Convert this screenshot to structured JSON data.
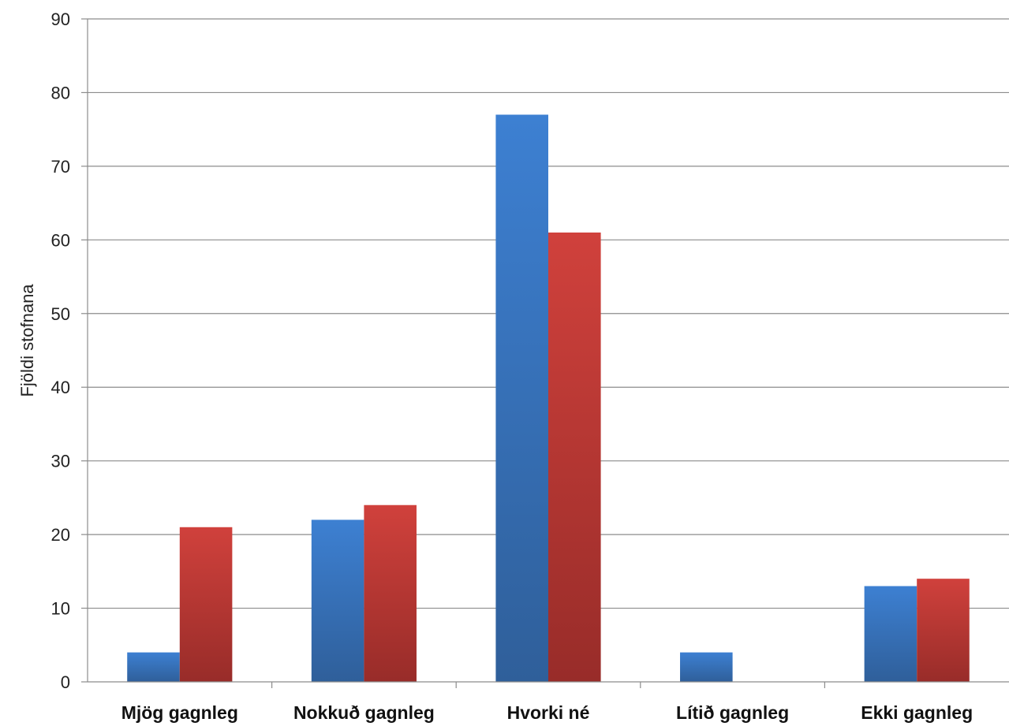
{
  "chart_data": {
    "type": "bar",
    "categories": [
      "Mjög gagnleg",
      "Nokkuð gagnleg",
      "Hvorki né",
      "Lítið gagnleg",
      "Ekki gagnleg"
    ],
    "series": [
      {
        "values": [
          4,
          22,
          77,
          4,
          13
        ],
        "color": "#3a7bc8"
      },
      {
        "values": [
          21,
          24,
          61,
          0,
          14
        ],
        "color": "#c83a36"
      }
    ],
    "title": "",
    "xlabel": "",
    "ylabel": "Fjöldi stofnana",
    "ylim": [
      0,
      90
    ],
    "yticks": [
      0,
      10,
      20,
      30,
      40,
      50,
      60,
      70,
      80,
      90
    ],
    "grid": true,
    "legend": "none"
  }
}
